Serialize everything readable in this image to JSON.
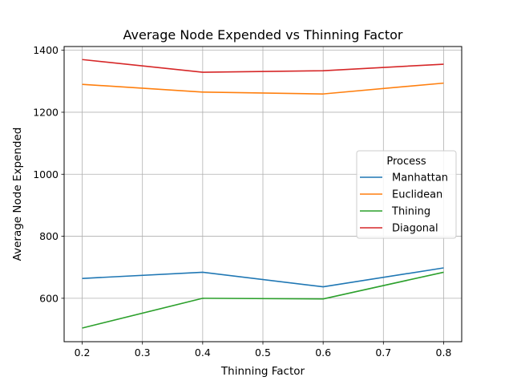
{
  "chart_data": {
    "type": "line",
    "title": "Average Node Expended vs Thinning Factor",
    "xlabel": "Thinning Factor",
    "ylabel": "Average Node Expended",
    "x": [
      0.2,
      0.4,
      0.6,
      0.8
    ],
    "xticks": [
      "0.2",
      "0.3",
      "0.4",
      "0.5",
      "0.6",
      "0.7",
      "0.8"
    ],
    "yticks": [
      "600",
      "800",
      "1000",
      "1200",
      "1400"
    ],
    "xlim": [
      0.17,
      0.83
    ],
    "ylim": [
      460,
      1412
    ],
    "grid": true,
    "legend": {
      "title": "Process",
      "placement": "center-right"
    },
    "series": [
      {
        "name": "Manhattan",
        "color": "#1f77b4",
        "values": [
          664,
          684,
          637,
          698
        ]
      },
      {
        "name": "Euclidean",
        "color": "#ff7f0e",
        "values": [
          1290,
          1265,
          1259,
          1294
        ]
      },
      {
        "name": "Thining",
        "color": "#2ca02c",
        "values": [
          504,
          600,
          598,
          684
        ]
      },
      {
        "name": "Diagonal",
        "color": "#d62728",
        "values": [
          1370,
          1329,
          1334,
          1355
        ]
      }
    ]
  }
}
